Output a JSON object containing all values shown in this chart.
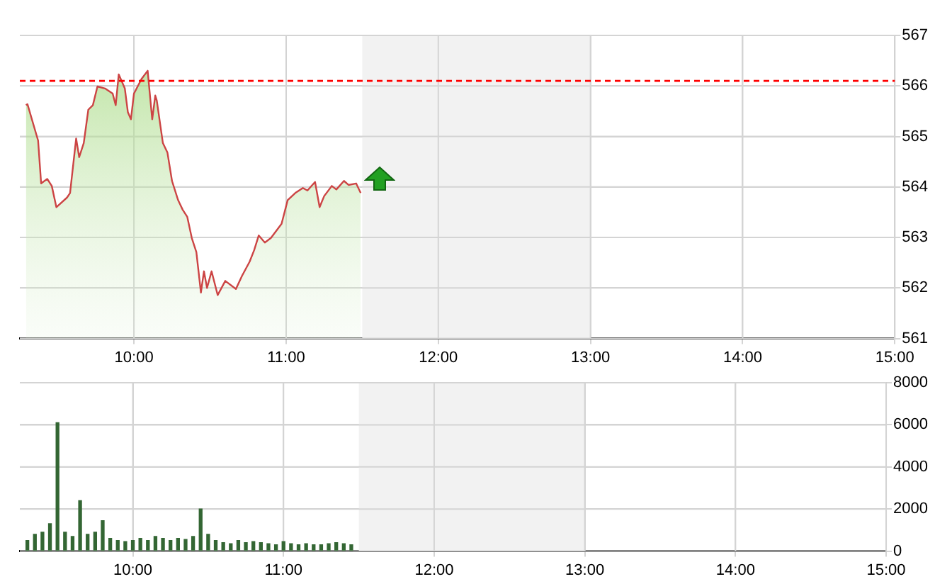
{
  "chart_data": [
    {
      "type": "area",
      "xlim": [
        9.25,
        15
      ],
      "ylim": [
        561,
        567
      ],
      "yticks": [
        561,
        562,
        563,
        564,
        565,
        566,
        567
      ],
      "xticks": [
        {
          "value": 10,
          "label": "10:00"
        },
        {
          "value": 11,
          "label": "11:00"
        },
        {
          "value": 12,
          "label": "12:00"
        },
        {
          "value": 13,
          "label": "13:00"
        },
        {
          "value": 14,
          "label": "14:00"
        },
        {
          "value": 15,
          "label": "15:00"
        }
      ],
      "grid": true,
      "legend": false,
      "bands": [
        {
          "axis": "x",
          "from": 11.5,
          "to": 13,
          "color": "#f2f2f2"
        }
      ],
      "ref_lines": [
        {
          "axis": "y",
          "value": 566.1,
          "color": "#ff0000",
          "line_style": "dashed"
        }
      ],
      "series": [
        {
          "color": "#cc4444",
          "x": [
            9.29,
            9.3,
            9.37,
            9.39,
            9.43,
            9.46,
            9.49,
            9.56,
            9.58,
            9.62,
            9.64,
            9.67,
            9.7,
            9.73,
            9.76,
            9.81,
            9.86,
            9.88,
            9.9,
            9.94,
            9.96,
            9.98,
            10.0,
            10.05,
            10.09,
            10.12,
            10.14,
            10.15,
            10.19,
            10.22,
            10.25,
            10.29,
            10.32,
            10.35,
            10.38,
            10.41,
            10.44,
            10.46,
            10.48,
            10.51,
            10.55,
            10.6,
            10.67,
            10.71,
            10.76,
            10.79,
            10.82,
            10.86,
            10.9,
            10.97,
            11.01,
            11.06,
            11.11,
            11.14,
            11.19,
            11.22,
            11.25,
            11.3,
            11.33,
            11.38,
            11.41,
            11.46,
            11.49
          ],
          "values": [
            565.62,
            565.64,
            564.92,
            564.07,
            564.16,
            564.02,
            563.6,
            563.79,
            563.88,
            564.96,
            564.59,
            564.87,
            565.53,
            565.62,
            565.99,
            565.95,
            565.85,
            565.62,
            566.23,
            565.95,
            565.48,
            565.34,
            565.85,
            566.14,
            566.3,
            565.34,
            565.81,
            565.71,
            564.87,
            564.68,
            564.12,
            563.74,
            563.55,
            563.41,
            562.99,
            562.71,
            561.91,
            562.33,
            562.0,
            562.33,
            561.86,
            562.14,
            561.98,
            562.24,
            562.52,
            562.75,
            563.04,
            562.9,
            562.99,
            563.27,
            563.74,
            563.88,
            563.98,
            563.93,
            564.1,
            563.6,
            563.82,
            564.02,
            563.95,
            564.12,
            564.04,
            564.07,
            563.88
          ]
        }
      ]
    },
    {
      "type": "bar",
      "xlim": [
        9.25,
        15
      ],
      "ylim": [
        0,
        8000
      ],
      "yticks": [
        0,
        2000,
        4000,
        6000,
        8000
      ],
      "xticks": [
        {
          "value": 10,
          "label": "10:00"
        },
        {
          "value": 11,
          "label": "11:00"
        },
        {
          "value": 12,
          "label": "12:00"
        },
        {
          "value": 13,
          "label": "13:00"
        },
        {
          "value": 14,
          "label": "14:00"
        },
        {
          "value": 15,
          "label": "15:00"
        }
      ],
      "grid": true,
      "legend": false,
      "bands": [
        {
          "axis": "x",
          "from": 11.5,
          "to": 13,
          "color": "#f2f2f2"
        }
      ],
      "series": [
        {
          "color": "#336633",
          "x": [
            9.3,
            9.35,
            9.4,
            9.45,
            9.5,
            9.55,
            9.6,
            9.65,
            9.7,
            9.75,
            9.8,
            9.85,
            9.9,
            9.95,
            10.0,
            10.05,
            10.1,
            10.15,
            10.2,
            10.25,
            10.3,
            10.35,
            10.4,
            10.45,
            10.5,
            10.55,
            10.6,
            10.65,
            10.7,
            10.75,
            10.8,
            10.85,
            10.9,
            10.95,
            11.0,
            11.05,
            11.1,
            11.15,
            11.2,
            11.25,
            11.3,
            11.35,
            11.4,
            11.45
          ],
          "values": [
            500,
            800,
            900,
            1300,
            6100,
            900,
            700,
            2400,
            800,
            900,
            1450,
            600,
            500,
            450,
            500,
            600,
            500,
            700,
            600,
            500,
            600,
            550,
            700,
            2000,
            800,
            500,
            400,
            350,
            500,
            400,
            450,
            400,
            350,
            300,
            450,
            350,
            300,
            350,
            300,
            300,
            350,
            400,
            350,
            300
          ]
        }
      ]
    }
  ]
}
